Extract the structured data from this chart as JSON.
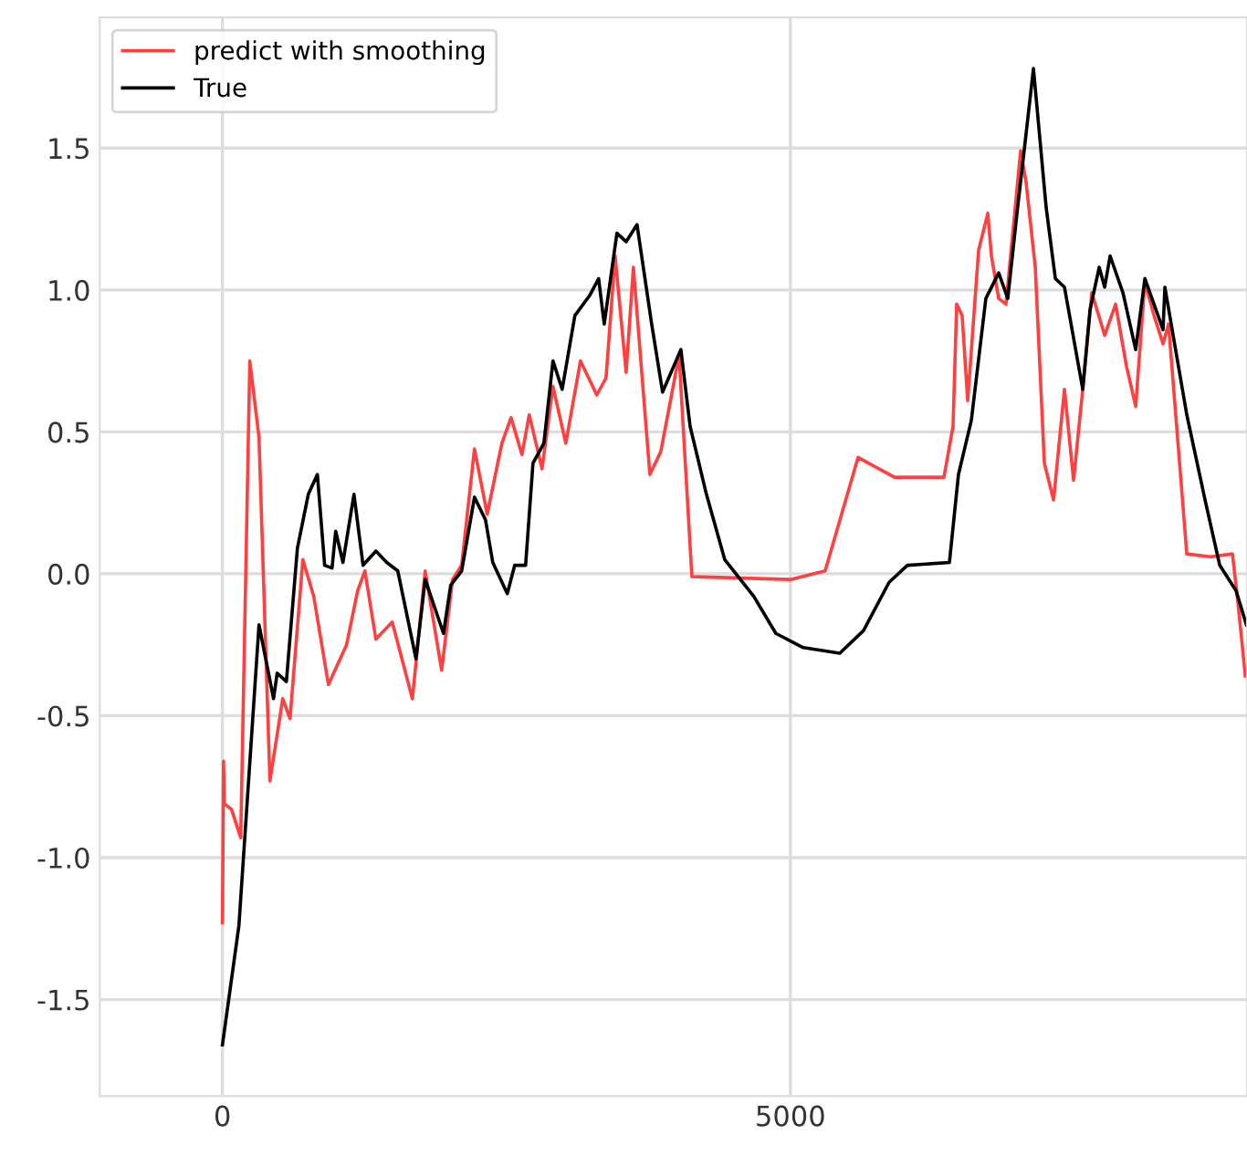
{
  "chart_data": {
    "type": "line",
    "xlim": [
      -1080,
      9020
    ],
    "ylim": [
      -1.84,
      1.96
    ],
    "xticks": [
      0,
      5000
    ],
    "yticks": [
      -1.5,
      {
        "value": -1,
        "label": "-1.0"
      },
      -0.5,
      {
        "value": 0,
        "label": "0.0"
      },
      0.5,
      {
        "value": 1,
        "label": "1.0"
      },
      1.5
    ],
    "grid": true,
    "legend": "top left",
    "series": [
      {
        "name": "predict with smoothing",
        "color": "#ff4040",
        "x": [
          0,
          10,
          16,
          80,
          161,
          241,
          322,
          418,
          531,
          595,
          708,
          804,
          933,
          1093,
          1190,
          1254,
          1351,
          1495,
          1672,
          1785,
          1930,
          2026,
          2106,
          2219,
          2331,
          2460,
          2541,
          2637,
          2701,
          2814,
          2910,
          3023,
          3152,
          3296,
          3377,
          3457,
          3554,
          3618,
          3763,
          3859,
          4020,
          4133,
          5000,
          5306,
          5596,
          5917,
          6352,
          6432,
          6464,
          6512,
          6561,
          6657,
          6738,
          6770,
          6834,
          6898,
          7027,
          7075,
          7156,
          7236,
          7317,
          7413,
          7493,
          7574,
          7654,
          7767,
          7863,
          7960,
          8040,
          8121,
          8201,
          8281,
          8329,
          8490,
          8700,
          8892,
          8940,
          9005
        ],
        "values": [
          -1.23,
          -0.66,
          -0.81,
          -0.83,
          -0.93,
          0.75,
          0.48,
          -0.73,
          -0.44,
          -0.51,
          0.05,
          -0.08,
          -0.39,
          -0.25,
          -0.06,
          0.01,
          -0.23,
          -0.17,
          -0.44,
          0.01,
          -0.34,
          -0.02,
          0.03,
          0.44,
          0.21,
          0.46,
          0.55,
          0.42,
          0.56,
          0.37,
          0.66,
          0.46,
          0.75,
          0.63,
          0.69,
          1.12,
          0.71,
          1.08,
          0.35,
          0.43,
          0.77,
          -0.01,
          -0.02,
          0.01,
          0.41,
          0.34,
          0.34,
          0.52,
          0.95,
          0.91,
          0.61,
          1.14,
          1.27,
          1.12,
          0.97,
          0.95,
          1.49,
          1.38,
          1.08,
          0.39,
          0.26,
          0.65,
          0.33,
          0.65,
          0.99,
          0.84,
          0.95,
          0.73,
          0.59,
          1.03,
          0.91,
          0.81,
          0.88,
          0.07,
          0.06,
          0.07,
          -0.1,
          -0.36
        ]
      },
      {
        "name": "True",
        "color": "#000000",
        "x": [
          0,
          145,
          322,
          450,
          482,
          563,
          660,
          756,
          836,
          900,
          965,
          997,
          1061,
          1158,
          1238,
          1351,
          1447,
          1544,
          1704,
          1785,
          1946,
          2010,
          2106,
          2219,
          2316,
          2380,
          2508,
          2573,
          2669,
          2734,
          2830,
          2910,
          2991,
          3103,
          3232,
          3312,
          3361,
          3473,
          3554,
          3650,
          3779,
          3875,
          4036,
          4117,
          4261,
          4422,
          4679,
          4872,
          5113,
          5435,
          5644,
          5869,
          6030,
          6400,
          6480,
          6593,
          6721,
          6834,
          6914,
          6995,
          7075,
          7140,
          7252,
          7333,
          7413,
          7574,
          7638,
          7719,
          7767,
          7815,
          7928,
          8040,
          8121,
          8281,
          8297,
          8490,
          8651,
          8780,
          8924,
          9015
        ],
        "values": [
          -1.66,
          -1.24,
          -0.18,
          -0.44,
          -0.35,
          -0.38,
          0.09,
          0.28,
          0.35,
          0.03,
          0.02,
          0.15,
          0.04,
          0.28,
          0.03,
          0.08,
          0.04,
          0.01,
          -0.3,
          -0.02,
          -0.21,
          -0.04,
          0.01,
          0.27,
          0.19,
          0.04,
          -0.07,
          0.03,
          0.03,
          0.39,
          0.46,
          0.75,
          0.65,
          0.91,
          0.98,
          1.04,
          0.88,
          1.2,
          1.17,
          1.23,
          0.88,
          0.64,
          0.79,
          0.52,
          0.28,
          0.05,
          -0.08,
          -0.21,
          -0.26,
          -0.28,
          -0.2,
          -0.03,
          0.03,
          0.04,
          0.35,
          0.54,
          0.97,
          1.06,
          0.97,
          1.27,
          1.55,
          1.78,
          1.29,
          1.04,
          1.01,
          0.65,
          0.93,
          1.08,
          1.01,
          1.12,
          0.99,
          0.79,
          1.04,
          0.86,
          1.01,
          0.56,
          0.26,
          0.03,
          -0.06,
          -0.18
        ]
      }
    ]
  }
}
